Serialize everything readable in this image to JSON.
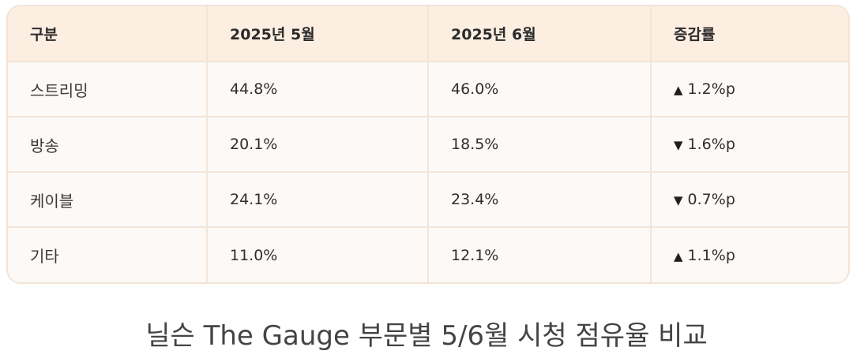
{
  "table": {
    "headers": [
      "구분",
      "2025년 5월",
      "2025년 6월",
      "증감률"
    ],
    "rows": [
      {
        "category": "스트리밍",
        "may": "44.8%",
        "june": "46.0%",
        "change_arrow": "▲",
        "change": "1.2%p"
      },
      {
        "category": "방송",
        "may": "20.1%",
        "june": "18.5%",
        "change_arrow": "▼",
        "change": "1.6%p"
      },
      {
        "category": "케이블",
        "may": "24.1%",
        "june": "23.4%",
        "change_arrow": "▼",
        "change": "0.7%p"
      },
      {
        "category": "기타",
        "may": "11.0%",
        "june": "12.1%",
        "change_arrow": "▲",
        "change": "1.1%p"
      }
    ]
  },
  "caption": "닐슨 The Gauge 부문별 5/6월 시청 점유율 비교"
}
